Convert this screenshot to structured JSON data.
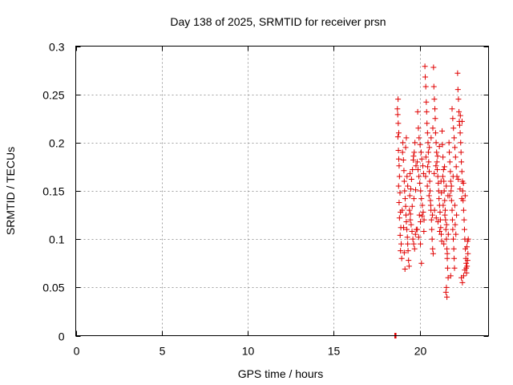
{
  "chart_data": {
    "type": "scatter",
    "title": "Day 138 of 2025, SRMTID for receiver prsn",
    "xlabel": "GPS time / hours",
    "ylabel": "SRMTID / TECUs",
    "xlim": [
      0,
      24
    ],
    "ylim": [
      0,
      0.3
    ],
    "x_ticks": [
      0,
      5,
      10,
      15,
      20
    ],
    "x_tick_labels": [
      "0",
      "5",
      "10",
      "15",
      "20"
    ],
    "y_ticks": [
      0,
      0.05,
      0.1,
      0.15,
      0.2,
      0.25,
      0.3
    ],
    "y_tick_labels": [
      "0",
      "0.05",
      "0.1",
      "0.15",
      "0.2",
      "0.25",
      "0.3"
    ],
    "grid": true,
    "marker": "+",
    "series": [
      {
        "name": "SRMTID",
        "color": "#e00000",
        "points": [
          [
            18.55,
            0
          ],
          [
            18.58,
            0
          ],
          [
            18.6,
            0
          ],
          [
            18.62,
            0
          ],
          [
            18.7,
            0.235
          ],
          [
            18.72,
            0.229
          ],
          [
            18.75,
            0.22
          ],
          [
            18.73,
            0.206
          ],
          [
            18.76,
            0.192
          ],
          [
            18.78,
            0.183
          ],
          [
            18.8,
            0.176
          ],
          [
            18.82,
            0.165
          ],
          [
            18.77,
            0.155
          ],
          [
            18.85,
            0.148
          ],
          [
            18.8,
            0.138
          ],
          [
            18.88,
            0.128
          ],
          [
            18.82,
            0.122
          ],
          [
            18.9,
            0.112
          ],
          [
            18.86,
            0.104
          ],
          [
            18.92,
            0.095
          ],
          [
            18.88,
            0.088
          ],
          [
            18.95,
            0.08
          ],
          [
            18.78,
            0.21
          ],
          [
            18.74,
            0.245
          ],
          [
            18.98,
            0.13
          ],
          [
            19.0,
            0.19
          ],
          [
            19.05,
            0.182
          ],
          [
            19.08,
            0.171
          ],
          [
            19.1,
            0.16
          ],
          [
            19.12,
            0.15
          ],
          [
            19.15,
            0.142
          ],
          [
            19.18,
            0.134
          ],
          [
            19.2,
            0.125
          ],
          [
            19.22,
            0.118
          ],
          [
            19.25,
            0.11
          ],
          [
            19.28,
            0.102
          ],
          [
            19.3,
            0.095
          ],
          [
            19.32,
            0.088
          ],
          [
            19.35,
            0.078
          ],
          [
            19.38,
            0.072
          ],
          [
            19.02,
            0.2
          ],
          [
            19.06,
            0.112
          ],
          [
            19.1,
            0.086
          ],
          [
            19.14,
            0.069
          ],
          [
            19.18,
            0.195
          ],
          [
            19.22,
            0.205
          ],
          [
            19.26,
            0.165
          ],
          [
            19.3,
            0.155
          ],
          [
            19.4,
            0.13
          ],
          [
            19.45,
            0.12
          ],
          [
            19.5,
            0.115
          ],
          [
            19.55,
            0.108
          ],
          [
            19.6,
            0.1
          ],
          [
            19.65,
            0.095
          ],
          [
            19.7,
            0.09
          ],
          [
            19.75,
            0.105
          ],
          [
            19.8,
            0.11
          ],
          [
            19.42,
            0.145
          ],
          [
            19.48,
            0.152
          ],
          [
            19.52,
            0.162
          ],
          [
            19.58,
            0.172
          ],
          [
            19.62,
            0.182
          ],
          [
            19.68,
            0.19
          ],
          [
            19.72,
            0.2
          ],
          [
            19.78,
            0.176
          ],
          [
            19.46,
            0.126
          ],
          [
            19.56,
            0.134
          ],
          [
            19.66,
            0.142
          ],
          [
            19.76,
            0.151
          ],
          [
            19.44,
            0.168
          ],
          [
            19.64,
            0.186
          ],
          [
            19.85,
            0.18
          ],
          [
            19.9,
            0.172
          ],
          [
            19.95,
            0.165
          ],
          [
            20.0,
            0.158
          ],
          [
            20.05,
            0.15
          ],
          [
            20.1,
            0.142
          ],
          [
            20.15,
            0.135
          ],
          [
            20.2,
            0.128
          ],
          [
            20.25,
            0.12
          ],
          [
            19.88,
            0.232
          ],
          [
            19.92,
            0.215
          ],
          [
            19.96,
            0.205
          ],
          [
            20.02,
            0.198
          ],
          [
            20.08,
            0.19
          ],
          [
            20.12,
            0.183
          ],
          [
            20.18,
            0.176
          ],
          [
            20.22,
            0.168
          ],
          [
            19.86,
            0.11
          ],
          [
            19.94,
            0.102
          ],
          [
            20.04,
            0.118
          ],
          [
            20.14,
            0.124
          ],
          [
            20.24,
            0.108
          ],
          [
            20.1,
            0.075
          ],
          [
            20.04,
            0.095
          ],
          [
            19.98,
            0.125
          ],
          [
            20.3,
            0.279
          ],
          [
            20.32,
            0.268
          ],
          [
            20.35,
            0.258
          ],
          [
            20.38,
            0.242
          ],
          [
            20.4,
            0.232
          ],
          [
            20.42,
            0.22
          ],
          [
            20.45,
            0.21
          ],
          [
            20.48,
            0.2
          ],
          [
            20.5,
            0.19
          ],
          [
            20.52,
            0.18
          ],
          [
            20.55,
            0.17
          ],
          [
            20.58,
            0.16
          ],
          [
            20.6,
            0.15
          ],
          [
            20.62,
            0.14
          ],
          [
            20.65,
            0.13
          ],
          [
            20.68,
            0.12
          ],
          [
            20.7,
            0.11
          ],
          [
            20.72,
            0.1
          ],
          [
            20.75,
            0.09
          ],
          [
            20.78,
            0.085
          ],
          [
            20.34,
            0.165
          ],
          [
            20.44,
            0.155
          ],
          [
            20.54,
            0.145
          ],
          [
            20.64,
            0.135
          ],
          [
            20.74,
            0.125
          ],
          [
            20.36,
            0.185
          ],
          [
            20.46,
            0.175
          ],
          [
            20.56,
            0.195
          ],
          [
            20.66,
            0.205
          ],
          [
            20.76,
            0.215
          ],
          [
            20.8,
            0.278
          ],
          [
            20.82,
            0.258
          ],
          [
            20.85,
            0.245
          ],
          [
            20.88,
            0.235
          ],
          [
            20.9,
            0.225
          ],
          [
            20.92,
            0.21
          ],
          [
            20.95,
            0.2
          ],
          [
            20.98,
            0.19
          ],
          [
            21.0,
            0.18
          ],
          [
            21.02,
            0.172
          ],
          [
            21.05,
            0.165
          ],
          [
            21.08,
            0.158
          ],
          [
            21.1,
            0.15
          ],
          [
            21.12,
            0.142
          ],
          [
            21.15,
            0.135
          ],
          [
            21.18,
            0.128
          ],
          [
            21.2,
            0.12
          ],
          [
            21.22,
            0.112
          ],
          [
            21.25,
            0.105
          ],
          [
            21.28,
            0.098
          ],
          [
            20.84,
            0.168
          ],
          [
            20.94,
            0.176
          ],
          [
            21.04,
            0.186
          ],
          [
            21.14,
            0.196
          ],
          [
            21.24,
            0.16
          ],
          [
            20.86,
            0.13
          ],
          [
            20.96,
            0.122
          ],
          [
            21.06,
            0.118
          ],
          [
            21.16,
            0.108
          ],
          [
            21.26,
            0.148
          ],
          [
            21.3,
            0.212
          ],
          [
            21.32,
            0.198
          ],
          [
            21.35,
            0.185
          ],
          [
            21.38,
            0.172
          ],
          [
            21.4,
            0.16
          ],
          [
            21.42,
            0.15
          ],
          [
            21.45,
            0.14
          ],
          [
            21.48,
            0.13
          ],
          [
            21.5,
            0.12
          ],
          [
            21.52,
            0.11
          ],
          [
            21.55,
            0.1
          ],
          [
            21.58,
            0.09
          ],
          [
            21.6,
            0.08
          ],
          [
            21.62,
            0.07
          ],
          [
            21.65,
            0.06
          ],
          [
            21.55,
            0.05
          ],
          [
            21.58,
            0.04
          ],
          [
            21.52,
            0.045
          ],
          [
            21.34,
            0.165
          ],
          [
            21.44,
            0.175
          ],
          [
            21.54,
            0.155
          ],
          [
            21.64,
            0.145
          ],
          [
            21.36,
            0.135
          ],
          [
            21.46,
            0.125
          ],
          [
            21.56,
            0.115
          ],
          [
            21.66,
            0.105
          ],
          [
            21.4,
            0.095
          ],
          [
            21.6,
            0.085
          ],
          [
            21.7,
            0.2
          ],
          [
            21.72,
            0.19
          ],
          [
            21.75,
            0.18
          ],
          [
            21.78,
            0.17
          ],
          [
            21.8,
            0.16
          ],
          [
            21.82,
            0.15
          ],
          [
            21.85,
            0.14
          ],
          [
            21.88,
            0.13
          ],
          [
            21.9,
            0.12
          ],
          [
            21.92,
            0.11
          ],
          [
            21.95,
            0.1
          ],
          [
            21.98,
            0.09
          ],
          [
            22.0,
            0.08
          ],
          [
            22.02,
            0.07
          ],
          [
            21.88,
            0.235
          ],
          [
            21.92,
            0.225
          ],
          [
            21.96,
            0.215
          ],
          [
            22.0,
            0.205
          ],
          [
            22.04,
            0.195
          ],
          [
            22.08,
            0.185
          ],
          [
            22.12,
            0.175
          ],
          [
            22.16,
            0.165
          ],
          [
            21.74,
            0.145
          ],
          [
            21.84,
            0.155
          ],
          [
            21.94,
            0.165
          ],
          [
            22.04,
            0.135
          ],
          [
            22.14,
            0.125
          ],
          [
            22.06,
            0.115
          ],
          [
            22.1,
            0.105
          ],
          [
            21.8,
            0.062
          ],
          [
            22.2,
            0.272
          ],
          [
            22.22,
            0.255
          ],
          [
            22.25,
            0.245
          ],
          [
            22.28,
            0.232
          ],
          [
            22.3,
            0.222
          ],
          [
            22.32,
            0.218
          ],
          [
            22.35,
            0.21
          ],
          [
            22.38,
            0.2
          ],
          [
            22.4,
            0.19
          ],
          [
            22.42,
            0.18
          ],
          [
            22.45,
            0.17
          ],
          [
            22.48,
            0.16
          ],
          [
            22.5,
            0.15
          ],
          [
            22.52,
            0.14
          ],
          [
            22.55,
            0.13
          ],
          [
            22.58,
            0.12
          ],
          [
            22.6,
            0.11
          ],
          [
            22.62,
            0.1
          ],
          [
            22.65,
            0.09
          ],
          [
            22.68,
            0.08
          ],
          [
            22.7,
            0.07
          ],
          [
            22.72,
            0.065
          ],
          [
            22.75,
            0.072
          ],
          [
            22.78,
            0.078
          ],
          [
            22.8,
            0.085
          ],
          [
            22.42,
            0.06
          ],
          [
            22.48,
            0.055
          ],
          [
            22.55,
            0.062
          ],
          [
            22.62,
            0.068
          ],
          [
            22.7,
            0.075
          ],
          [
            22.74,
            0.092
          ],
          [
            22.78,
            0.098
          ],
          [
            22.82,
            0.1
          ],
          [
            22.24,
            0.162
          ],
          [
            22.34,
            0.152
          ],
          [
            22.44,
            0.142
          ],
          [
            22.54,
            0.158
          ],
          [
            22.64,
            0.145
          ],
          [
            22.36,
            0.228
          ],
          [
            22.46,
            0.222
          ]
        ]
      }
    ]
  }
}
